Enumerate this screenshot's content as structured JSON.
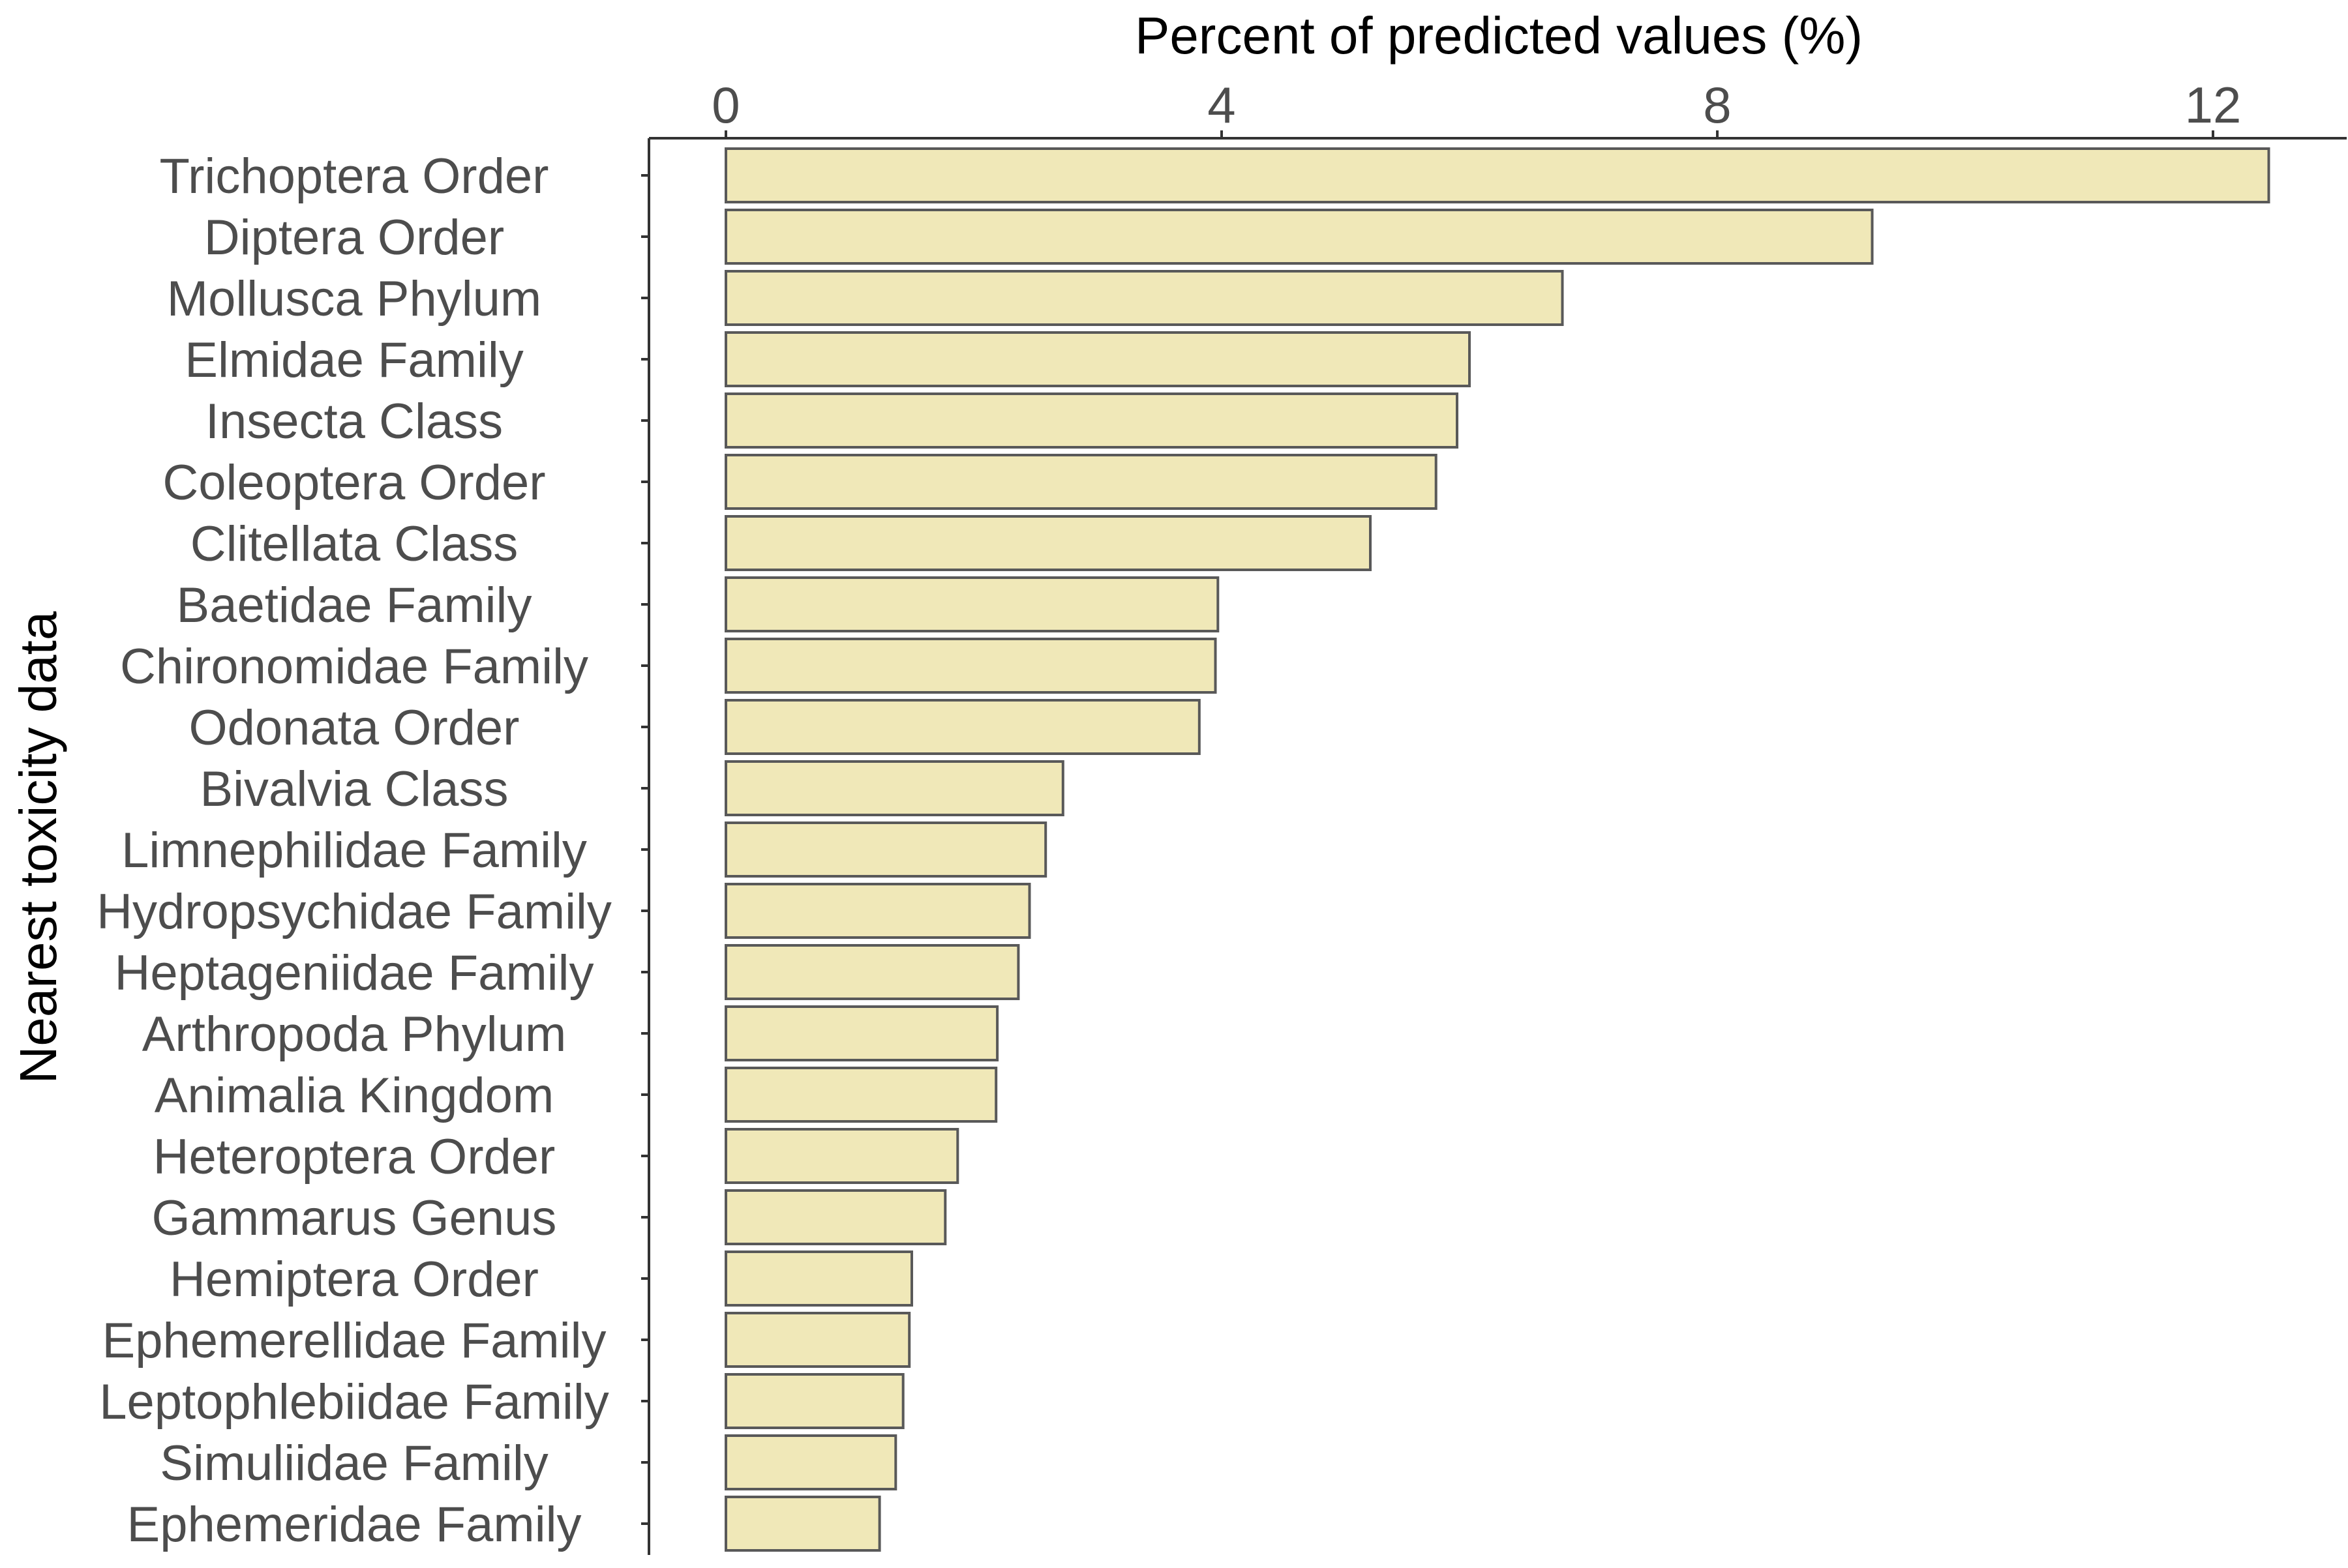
{
  "chart_data": {
    "type": "bar",
    "orientation": "horizontal",
    "title": "",
    "xlabel": "Percent of predicted values (%)",
    "ylabel": "Nearest toxicity data",
    "x_axis_position": "top",
    "xlim": [
      0,
      13.35
    ],
    "x_ticks": [
      0,
      4,
      8,
      12
    ],
    "grid": false,
    "bar_color": "#f0e8b8",
    "bar_edge_color": "#595959",
    "categories": [
      "Trichoptera Order",
      "Diptera Order",
      "Mollusca Phylum",
      "Elmidae Family",
      "Insecta Class",
      "Coleoptera Order",
      "Clitellata Class",
      "Baetidae Family",
      "Chironomidae Family",
      "Odonata Order",
      "Bivalvia Class",
      "Limnephilidae Family",
      "Hydropsychidae Family",
      "Heptageniidae Family",
      "Arthropoda Phylum",
      "Animalia Kingdom",
      "Heteroptera Order",
      "Gammarus Genus",
      "Hemiptera Order",
      "Ephemerellidae Family",
      "Leptophlebiidae Family",
      "Simuliidae Family",
      "Ephemeridae Family"
    ],
    "values": [
      12.45,
      9.25,
      6.75,
      6.0,
      5.9,
      5.73,
      5.2,
      3.97,
      3.95,
      3.82,
      2.72,
      2.58,
      2.45,
      2.36,
      2.19,
      2.18,
      1.87,
      1.77,
      1.5,
      1.48,
      1.43,
      1.37,
      1.24
    ]
  }
}
